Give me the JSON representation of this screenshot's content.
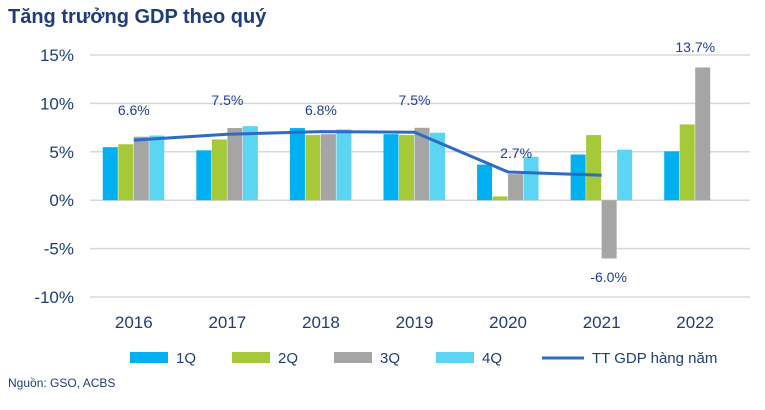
{
  "title": "Tăng trưởng GDP theo quý",
  "source": "Nguồn: GSO, ACBS",
  "chart_data": {
    "type": "bar",
    "title": "Tăng trưởng GDP theo quý",
    "categories": [
      "2016",
      "2017",
      "2018",
      "2019",
      "2020",
      "2021",
      "2022"
    ],
    "ylim": [
      -10,
      15
    ],
    "yticks": [
      15,
      10,
      5,
      0,
      -5,
      -10
    ],
    "ytick_labels": [
      "15%",
      "10%",
      "5%",
      "0%",
      "-5%",
      "-10%"
    ],
    "grid": true,
    "legend_position": "bottom",
    "series": [
      {
        "name": "1Q",
        "color": "#00b0f0",
        "values": [
          5.48,
          5.15,
          7.45,
          6.82,
          3.68,
          4.72,
          5.05
        ]
      },
      {
        "name": "2Q",
        "color": "#a6c93a",
        "values": [
          5.78,
          6.28,
          6.73,
          6.73,
          0.39,
          6.73,
          7.83
        ]
      },
      {
        "name": "3Q",
        "color": "#a5a5a5",
        "values": [
          6.56,
          7.46,
          6.82,
          7.48,
          2.69,
          -6.02,
          13.71
        ]
      },
      {
        "name": "4Q",
        "color": "#5bd5f2",
        "values": [
          6.68,
          7.65,
          7.31,
          6.97,
          4.48,
          5.22,
          null
        ]
      }
    ],
    "line_series": {
      "name": "TT GDP hàng năm",
      "color": "#2e6bc4",
      "values": [
        6.21,
        6.81,
        7.08,
        7.02,
        2.91,
        2.58,
        null
      ]
    },
    "annotations": [
      {
        "category": "2016",
        "text": "6.6%"
      },
      {
        "category": "2017",
        "text": "7.5%"
      },
      {
        "category": "2018",
        "text": "6.8%"
      },
      {
        "category": "2019",
        "text": "7.5%"
      },
      {
        "category": "2020",
        "text": "2.7%"
      },
      {
        "category": "2021",
        "text": "-6.0%"
      },
      {
        "category": "2022",
        "text": "13.7%"
      }
    ]
  }
}
